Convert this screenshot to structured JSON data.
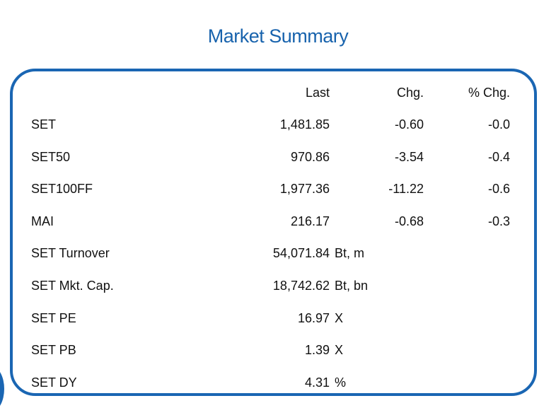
{
  "title": "Market Summary",
  "table": {
    "header": [
      "Last",
      "Chg.",
      "% Chg."
    ],
    "rows": [
      {
        "label": "SET",
        "last": "1,481.85",
        "chg": "-0.60",
        "pct_chg": "-0.0"
      },
      {
        "label": "SET50",
        "last": "970.86",
        "chg": "-3.54",
        "pct_chg": "-0.4"
      },
      {
        "label": "SET100FF",
        "last": "1,977.36",
        "chg": "-11.22",
        "pct_chg": "-0.6"
      },
      {
        "label": "MAI",
        "last": "216.17",
        "chg": "-0.68",
        "pct_chg": "-0.3"
      },
      {
        "label": "SET Turnover",
        "last": "54,071.84",
        "unit": "Bt, m"
      },
      {
        "label": "SET Mkt. Cap.",
        "last": "18,742.62",
        "unit": "Bt, bn"
      },
      {
        "label": "SET PE",
        "last": "16.97",
        "unit": "X"
      },
      {
        "label": "SET PB",
        "last": "1.39",
        "unit": "X"
      },
      {
        "label": "SET DY",
        "last": "4.31",
        "unit": "%"
      }
    ]
  }
}
